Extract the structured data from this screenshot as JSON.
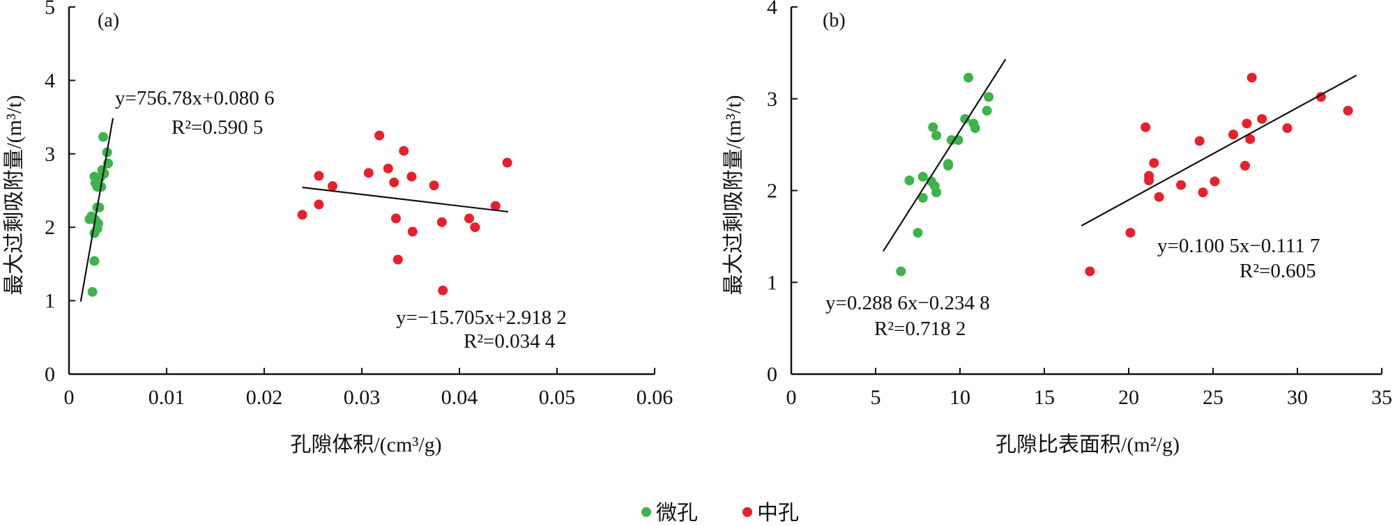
{
  "chart_data": [
    {
      "type": "scatter",
      "panel_label": "(a)",
      "xlabel": "孔隙体积/(cm³/g)",
      "ylabel": "最大过剩吸附量/(m³/t)",
      "xlim": [
        0,
        0.06
      ],
      "ylim": [
        0,
        5
      ],
      "xticks": [
        "0",
        "0.01",
        "0.02",
        "0.03",
        "0.04",
        "0.05",
        "0.06"
      ],
      "xtick_values": [
        0,
        0.01,
        0.02,
        0.03,
        0.04,
        0.05,
        0.06
      ],
      "yticks": [
        "0",
        "1",
        "2",
        "3",
        "4",
        "5"
      ],
      "ytick_values": [
        0,
        1,
        2,
        3,
        4,
        5
      ],
      "grid": false,
      "series": [
        {
          "name": "微孔",
          "color": "#3cb44b",
          "points": [
            [
              0.0035,
              3.23
            ],
            [
              0.0039,
              3.02
            ],
            [
              0.004,
              2.87
            ],
            [
              0.0034,
              2.78
            ],
            [
              0.0036,
              2.73
            ],
            [
              0.0032,
              2.68
            ],
            [
              0.0026,
              2.69
            ],
            [
              0.0027,
              2.6
            ],
            [
              0.0029,
              2.55
            ],
            [
              0.0033,
              2.55
            ],
            [
              0.0029,
              2.27
            ],
            [
              0.0031,
              2.27
            ],
            [
              0.0023,
              2.15
            ],
            [
              0.0027,
              2.1
            ],
            [
              0.0021,
              2.11
            ],
            [
              0.003,
              2.05
            ],
            [
              0.0029,
              1.98
            ],
            [
              0.0026,
              1.92
            ],
            [
              0.0026,
              1.54
            ],
            [
              0.0024,
              1.12
            ]
          ],
          "fit": {
            "x_range": [
              0.0012,
              0.0045
            ],
            "equation": "y=756.78x+0.080 6",
            "r2": "R²=0.590 5"
          }
        },
        {
          "name": "中孔",
          "color": "#e8202a",
          "points": [
            [
              0.0239,
              2.17
            ],
            [
              0.0256,
              2.7
            ],
            [
              0.0256,
              2.31
            ],
            [
              0.027,
              2.56
            ],
            [
              0.0307,
              2.74
            ],
            [
              0.0318,
              3.25
            ],
            [
              0.0327,
              2.8
            ],
            [
              0.0333,
              2.61
            ],
            [
              0.0335,
              2.12
            ],
            [
              0.0337,
              1.56
            ],
            [
              0.0343,
              3.04
            ],
            [
              0.0351,
              2.69
            ],
            [
              0.0352,
              1.94
            ],
            [
              0.0374,
              2.57
            ],
            [
              0.0382,
              2.07
            ],
            [
              0.0383,
              1.14
            ],
            [
              0.041,
              2.12
            ],
            [
              0.0416,
              2.0
            ],
            [
              0.0437,
              2.29
            ],
            [
              0.0449,
              2.88
            ]
          ],
          "fit": {
            "x_range": [
              0.0239,
              0.045
            ],
            "equation": "y=−15.705x+2.918 2",
            "r2": "R²=0.034 4"
          }
        }
      ]
    },
    {
      "type": "scatter",
      "panel_label": "(b)",
      "xlabel": "孔隙比表面积/(m²/g)",
      "ylabel": "最大过剩吸附量/(m³/t)",
      "xlim": [
        0,
        35
      ],
      "ylim": [
        0,
        4
      ],
      "xticks": [
        "0",
        "5",
        "10",
        "15",
        "20",
        "25",
        "30",
        "35"
      ],
      "xtick_values": [
        0,
        5,
        10,
        15,
        20,
        25,
        30,
        35
      ],
      "yticks": [
        "0",
        "1",
        "2",
        "3",
        "4"
      ],
      "ytick_values": [
        0,
        1,
        2,
        3,
        4
      ],
      "grid": false,
      "series": [
        {
          "name": "微孔",
          "color": "#3cb44b",
          "points": [
            [
              6.5,
              1.12
            ],
            [
              7.0,
              2.11
            ],
            [
              7.5,
              1.54
            ],
            [
              7.8,
              2.15
            ],
            [
              7.8,
              1.92
            ],
            [
              8.3,
              2.1
            ],
            [
              8.5,
              2.05
            ],
            [
              8.6,
              1.98
            ],
            [
              8.4,
              2.69
            ],
            [
              8.6,
              2.6
            ],
            [
              9.3,
              2.27
            ],
            [
              9.3,
              2.29
            ],
            [
              9.5,
              2.55
            ],
            [
              9.9,
              2.55
            ],
            [
              10.3,
              2.78
            ],
            [
              10.5,
              3.23
            ],
            [
              10.8,
              2.73
            ],
            [
              10.9,
              2.68
            ],
            [
              11.6,
              2.87
            ],
            [
              11.7,
              3.02
            ]
          ],
          "fit": {
            "x_range": [
              5.45,
              12.7
            ],
            "equation": "y=0.288 6x−0.234 8",
            "r2": "R²=0.718 2"
          }
        },
        {
          "name": "中孔",
          "color": "#e8202a",
          "points": [
            [
              17.7,
              1.12
            ],
            [
              20.1,
              1.54
            ],
            [
              21.0,
              2.69
            ],
            [
              21.5,
              2.3
            ],
            [
              21.2,
              2.16
            ],
            [
              21.2,
              2.11
            ],
            [
              21.8,
              1.93
            ],
            [
              23.1,
              2.06
            ],
            [
              24.2,
              2.54
            ],
            [
              24.4,
              1.98
            ],
            [
              25.1,
              2.1
            ],
            [
              26.2,
              2.61
            ],
            [
              26.9,
              2.27
            ],
            [
              27.0,
              2.73
            ],
            [
              27.2,
              2.56
            ],
            [
              27.3,
              3.23
            ],
            [
              27.9,
              2.78
            ],
            [
              29.4,
              2.68
            ],
            [
              31.4,
              3.02
            ],
            [
              33.0,
              2.87
            ]
          ],
          "fit": {
            "x_range": [
              17.2,
              33.5
            ],
            "equation": "y=0.100 5x−0.111 7",
            "r2": "R²=0.605"
          }
        }
      ]
    }
  ],
  "legend": {
    "placement": "bottom-center",
    "items": [
      {
        "label": "微孔",
        "color": "#3cb44b"
      },
      {
        "label": "中孔",
        "color": "#e8202a"
      }
    ]
  }
}
